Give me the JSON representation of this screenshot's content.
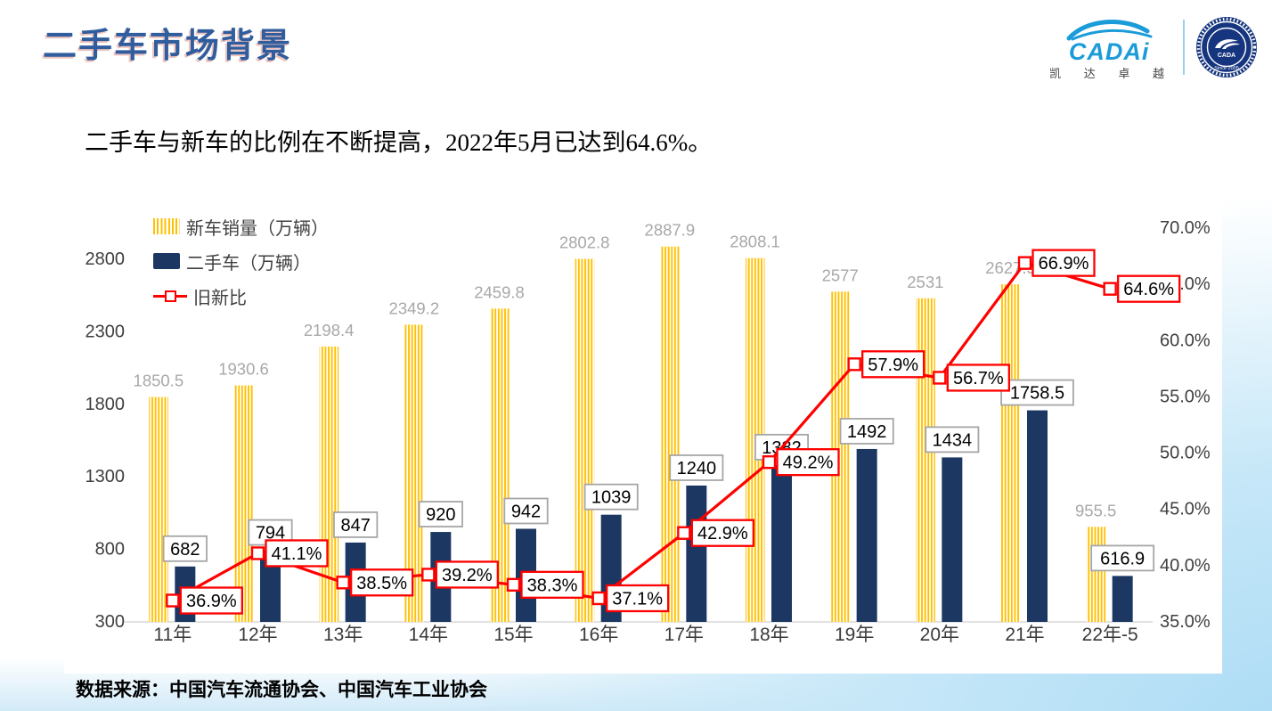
{
  "header": {
    "title": "二手车市场背景",
    "logo": {
      "brand": "CADAi",
      "brand_caption": "凯 达 卓 越",
      "badge_center": "CADA",
      "badge_bottom": "Since 2005"
    }
  },
  "subtitle": "二手车与新车的比例在不断提高，2022年5月已达到64.6%。",
  "source": "数据来源：中国汽车流通协会、中国汽车工业协会",
  "chart_data": {
    "type": "bar",
    "subtype": "combo-bar-line",
    "title": "",
    "categories": [
      "11年",
      "12年",
      "13年",
      "14年",
      "15年",
      "16年",
      "17年",
      "18年",
      "19年",
      "20年",
      "21年",
      "22年-5"
    ],
    "series": [
      {
        "name": "新车销量（万辆）",
        "kind": "bar",
        "style": "striped",
        "color": "#FFC000",
        "axis": "left",
        "values": [
          1850.5,
          1930.6,
          2198.4,
          2349.2,
          2459.8,
          2802.8,
          2887.9,
          2808.1,
          2577,
          2531,
          2627.5,
          955.5
        ],
        "labels": [
          "1850.5",
          "1930.6",
          "2198.4",
          "2349.2",
          "2459.8",
          "2802.8",
          "2887.9",
          "2808.1",
          "2577",
          "2531",
          "2627.5",
          "955.5"
        ]
      },
      {
        "name": "二手车（万辆）",
        "kind": "bar",
        "style": "solid",
        "color": "#1C3761",
        "axis": "left",
        "values": [
          682,
          794,
          847,
          920,
          942,
          1039,
          1240,
          1382,
          1492,
          1434,
          1758.5,
          616.9
        ],
        "labels": [
          "682",
          "794",
          "847",
          "920",
          "942",
          "1039",
          "1240",
          "1382",
          "1492",
          "1434",
          "1758.5",
          "616.9"
        ]
      },
      {
        "name": "旧新比",
        "kind": "line",
        "marker": "open-square",
        "color": "#FF0000",
        "axis": "right",
        "values": [
          36.9,
          41.1,
          38.5,
          39.2,
          38.3,
          37.1,
          42.9,
          49.2,
          57.9,
          56.7,
          66.9,
          64.6
        ],
        "labels": [
          "36.9%",
          "41.1%",
          "38.5%",
          "39.2%",
          "38.3%",
          "37.1%",
          "42.9%",
          "49.2%",
          "57.9%",
          "56.7%",
          "66.9%",
          "64.6%"
        ]
      }
    ],
    "left_axis": {
      "min": 300,
      "max": 2800,
      "step": 500,
      "ticks": [
        "300",
        "800",
        "1300",
        "1800",
        "2300",
        "2800"
      ]
    },
    "right_axis": {
      "min": 35,
      "max": 70,
      "step": 5,
      "ticks": [
        "35.0%",
        "40.0%",
        "45.0%",
        "50.0%",
        "55.0%",
        "60.0%",
        "65.0%",
        "70.0%"
      ]
    },
    "grid": false,
    "legend_position": "top-left",
    "label_colors": {
      "bar1_label": "#A8A8A8",
      "box_border_gray": "#A6A6A6",
      "box_border_red": "#FF0000",
      "axis_text": "#3F3F3F"
    }
  }
}
